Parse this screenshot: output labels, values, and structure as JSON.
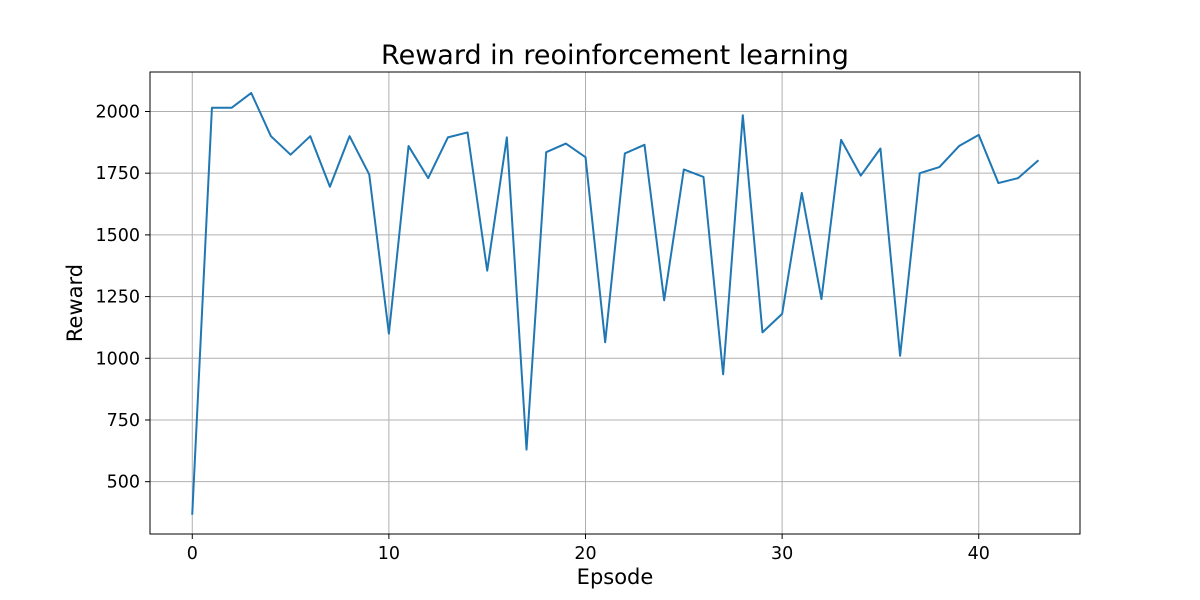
{
  "chart_data": {
    "type": "line",
    "title": "Reward in reoinforcement learning",
    "xlabel": "Epsode",
    "ylabel": "Reward",
    "xlim": [
      -2.15,
      45.15
    ],
    "ylim": [
      288,
      2160
    ],
    "xticks": [
      0,
      10,
      20,
      30,
      40
    ],
    "yticks": [
      500,
      750,
      1000,
      1250,
      1500,
      1750,
      2000
    ],
    "xtick_labels": [
      "0",
      "10",
      "20",
      "30",
      "40"
    ],
    "ytick_labels": [
      "500",
      "750",
      "1000",
      "1250",
      "1500",
      "1750",
      "2000"
    ],
    "grid": true,
    "series": [
      {
        "color": "#1f77b4",
        "x": [
          0,
          1,
          2,
          3,
          4,
          5,
          6,
          7,
          8,
          9,
          10,
          11,
          12,
          13,
          14,
          15,
          16,
          17,
          18,
          19,
          20,
          21,
          22,
          23,
          24,
          25,
          26,
          27,
          28,
          29,
          30,
          31,
          32,
          33,
          34,
          35,
          36,
          37,
          38,
          39,
          40,
          41,
          42,
          43
        ],
        "values": [
          370,
          2015,
          2015,
          2075,
          1900,
          1825,
          1900,
          1695,
          1900,
          1745,
          1100,
          1860,
          1730,
          1895,
          1915,
          1355,
          1895,
          630,
          1835,
          1870,
          1815,
          1065,
          1830,
          1865,
          1235,
          1765,
          1735,
          935,
          1985,
          1105,
          1180,
          1670,
          1240,
          1885,
          1740,
          1850,
          1010,
          1750,
          1775,
          1860,
          1905,
          1710,
          1730,
          1800
        ]
      }
    ]
  }
}
